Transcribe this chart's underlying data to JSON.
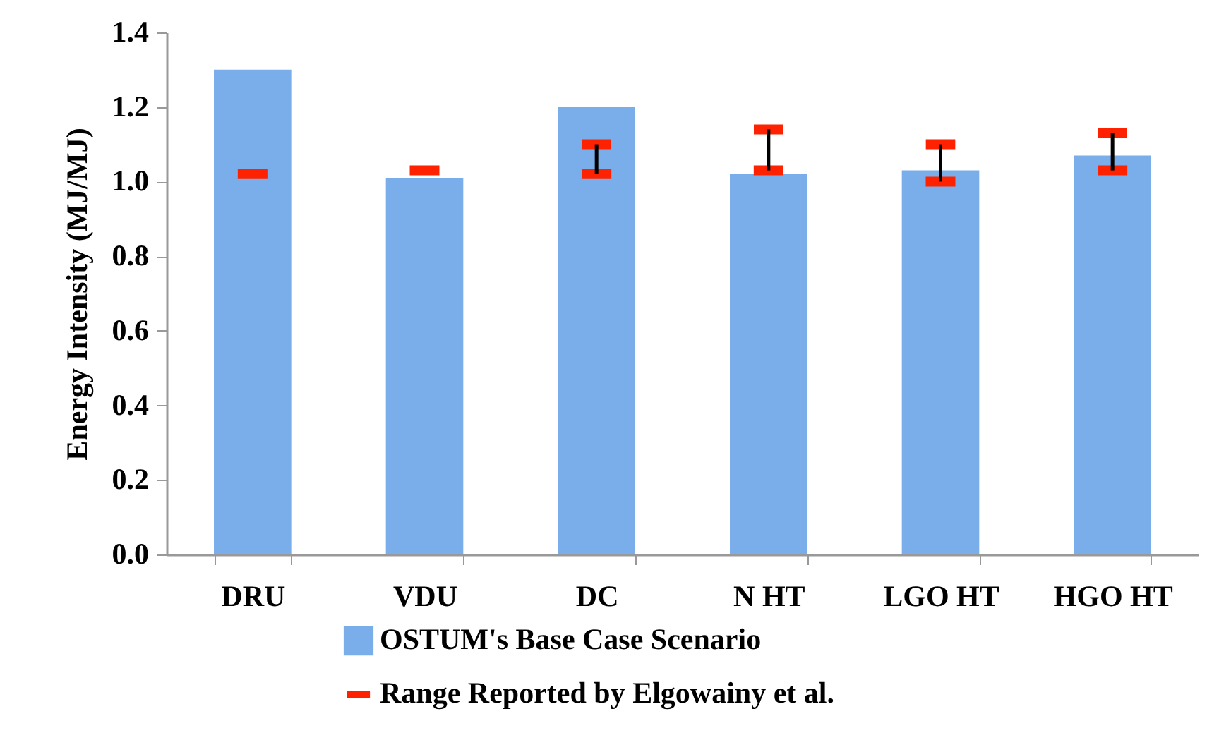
{
  "chart_data": {
    "type": "bar",
    "ylabel": "Energy Intensity (MJ/MJ)",
    "categories": [
      "DRU",
      "VDU",
      "DC",
      "N HT",
      "LGO HT",
      "HGO HT"
    ],
    "series": [
      {
        "name": "OSTUM's Base Case Scenario",
        "color": "#7aaeea",
        "values": [
          1.3,
          1.01,
          1.2,
          1.02,
          1.03,
          1.07
        ]
      },
      {
        "name": "Range Reported by Elgowainy et al.",
        "color": "#ff2200",
        "type": "scatter",
        "marker": "square",
        "values": [
          1.02,
          1.03,
          1.02,
          1.03,
          1.0,
          1.03
        ],
        "errors": [
          [
            1.02,
            1.02
          ],
          [
            1.03,
            1.03
          ],
          [
            1.02,
            1.1
          ],
          [
            1.03,
            1.14
          ],
          [
            1.0,
            1.1
          ],
          [
            1.03,
            1.13
          ]
        ]
      }
    ],
    "ylim": [
      0,
      1.4
    ],
    "yticks": [
      {
        "value": 0,
        "label": "0.0"
      },
      {
        "value": 0.2,
        "label": "0.2"
      },
      {
        "value": 0.4,
        "label": "0.4"
      },
      {
        "value": 0.6,
        "label": "0.6"
      },
      {
        "value": 0.8,
        "label": "0.8"
      },
      {
        "value": 1.0,
        "label": "1.0"
      },
      {
        "value": 1.2,
        "label": "1.2"
      },
      {
        "value": 1.4,
        "label": "1.4"
      }
    ],
    "grid": false,
    "legend": "bottom"
  }
}
